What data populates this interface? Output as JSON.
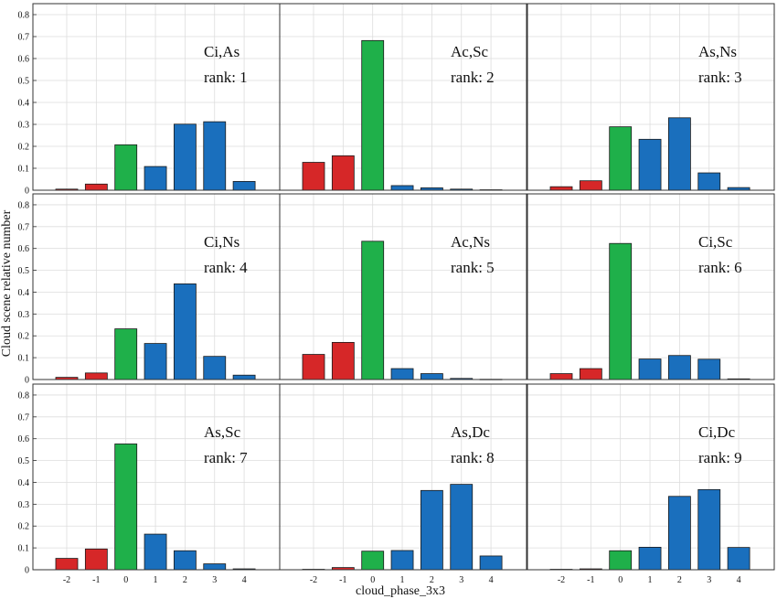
{
  "chart_data": {
    "type": "bar",
    "layout": "3x3 grid of bar charts",
    "xlabel": "cloud_phase_3x3",
    "ylabel": "Cloud scene relative number",
    "categories": [
      "-2",
      "-1",
      "0",
      "1",
      "2",
      "3",
      "4"
    ],
    "ylim": [
      0,
      0.85
    ],
    "yticks": [
      "0",
      "0.1",
      "0.2",
      "0.3",
      "0.4",
      "0.5",
      "0.6",
      "0.7",
      "0.8"
    ],
    "grid": true,
    "colors": {
      "negative": "#d62728",
      "zero": "#1fb04a",
      "positive": "#1a6fbd",
      "axis": "#333333",
      "grid": "#dddddd"
    },
    "rank_prefix": "rank: ",
    "panels": [
      {
        "title": "Ci,As",
        "rank": "1",
        "values": [
          0.005,
          0.028,
          0.207,
          0.108,
          0.301,
          0.312,
          0.04
        ]
      },
      {
        "title": "Ac,Sc",
        "rank": "2",
        "values": [
          0.127,
          0.157,
          0.682,
          0.021,
          0.011,
          0.005,
          0.002
        ]
      },
      {
        "title": "As,Ns",
        "rank": "3",
        "values": [
          0.016,
          0.043,
          0.289,
          0.232,
          0.33,
          0.079,
          0.012
        ]
      },
      {
        "title": "Ci,Ns",
        "rank": "4",
        "values": [
          0.01,
          0.03,
          0.232,
          0.165,
          0.438,
          0.106,
          0.02
        ]
      },
      {
        "title": "Ac,Ns",
        "rank": "5",
        "values": [
          0.115,
          0.17,
          0.633,
          0.05,
          0.027,
          0.005,
          0.001
        ]
      },
      {
        "title": "Ci,Sc",
        "rank": "6",
        "values": [
          0.027,
          0.05,
          0.623,
          0.094,
          0.11,
          0.093,
          0.003
        ]
      },
      {
        "title": "As,Sc",
        "rank": "7",
        "values": [
          0.052,
          0.095,
          0.576,
          0.163,
          0.087,
          0.027,
          0.004
        ]
      },
      {
        "title": "As,Dc",
        "rank": "8",
        "values": [
          0.002,
          0.01,
          0.085,
          0.088,
          0.363,
          0.391,
          0.063
        ]
      },
      {
        "title": "Ci,Dc",
        "rank": "9",
        "values": [
          0.002,
          0.004,
          0.087,
          0.103,
          0.336,
          0.367,
          0.102
        ]
      }
    ]
  }
}
